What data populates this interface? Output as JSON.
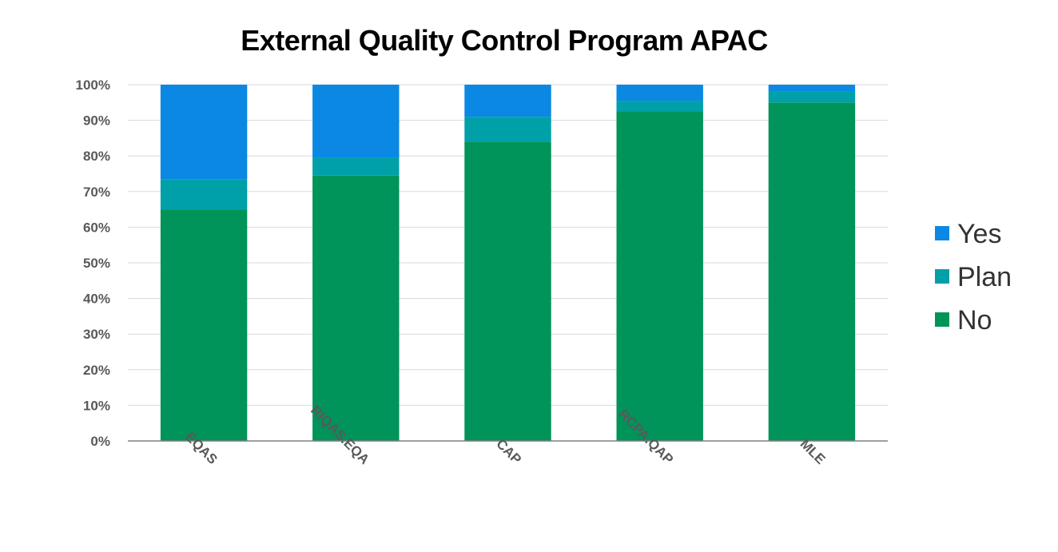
{
  "chart_data": {
    "type": "bar",
    "stacked": true,
    "title": "External Quality Control Program APAC",
    "xlabel": "",
    "ylabel": "",
    "categories": [
      "EQAS",
      "RIQAS.EQA",
      "CAP",
      "RCPA.QAP",
      "MLE"
    ],
    "series": [
      {
        "name": "No",
        "color": "#00935A",
        "values": [
          65,
          74.5,
          84,
          92.5,
          95
        ]
      },
      {
        "name": "Plan",
        "color": "#00A0A8",
        "values": [
          8.5,
          5,
          7,
          3,
          3
        ]
      },
      {
        "name": "Yes",
        "color": "#0A88E4",
        "values": [
          26.5,
          20.5,
          9,
          4.5,
          2
        ]
      }
    ],
    "ylim": [
      0,
      100
    ],
    "yticks": [
      "0%",
      "10%",
      "20%",
      "30%",
      "40%",
      "50%",
      "60%",
      "70%",
      "80%",
      "90%",
      "100%"
    ],
    "grid": true,
    "legend": {
      "position": "right",
      "entries": [
        "Yes",
        "Plan",
        "No"
      ]
    }
  }
}
